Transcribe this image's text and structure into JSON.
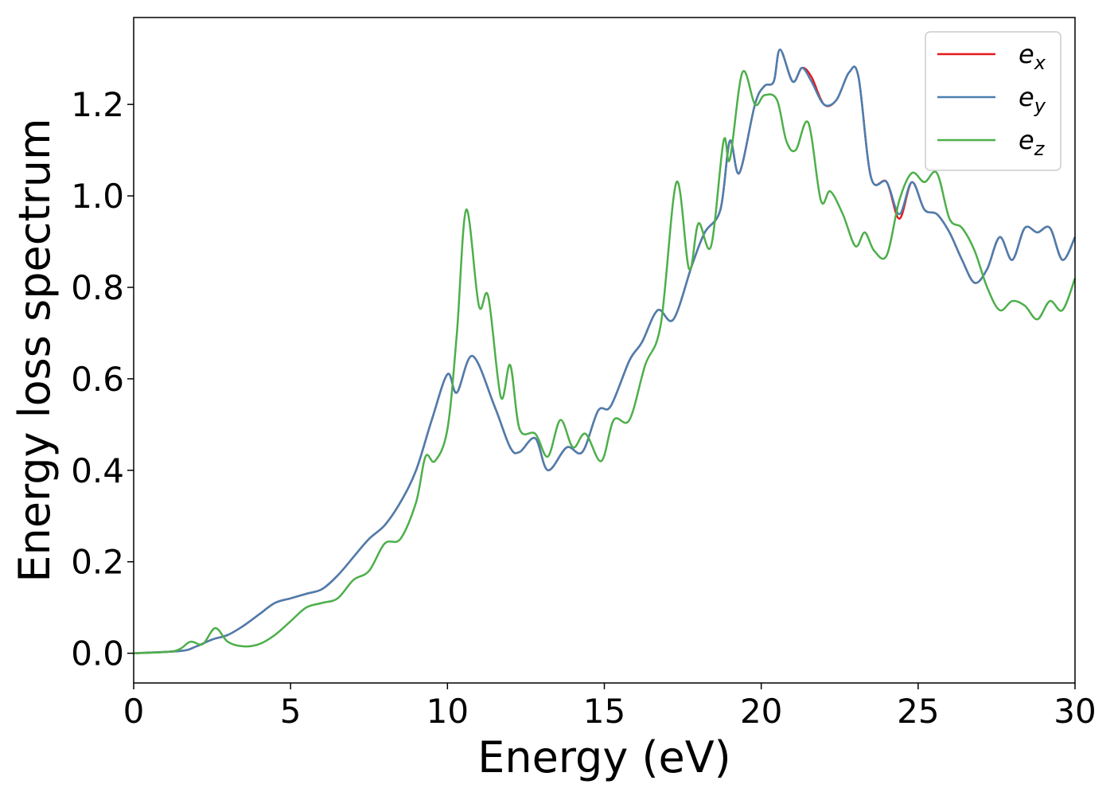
{
  "chart_data": {
    "type": "line",
    "xlabel": "Energy (eV)",
    "ylabel": "Energy loss spectrum",
    "xlim": [
      0,
      30
    ],
    "ylim": [
      -0.065,
      1.39
    ],
    "xticks": [
      0,
      5,
      10,
      15,
      20,
      25,
      30
    ],
    "xtick_labels": [
      "0",
      "5",
      "10",
      "15",
      "20",
      "25",
      "30"
    ],
    "yticks": [
      0.0,
      0.2,
      0.4,
      0.6,
      0.8,
      1.0,
      1.2
    ],
    "ytick_labels": [
      "0.0",
      "0.2",
      "0.4",
      "0.6",
      "0.8",
      "1.0",
      "1.2"
    ],
    "grid": false,
    "legend_position": "top-right",
    "series": [
      {
        "name": "e_x",
        "label_base": "e",
        "label_sub": "x",
        "color": "#e41a1c",
        "x": [
          0,
          1.5,
          2,
          2.5,
          3,
          3.5,
          4,
          4.5,
          5,
          5.5,
          6,
          6.5,
          7,
          7.5,
          8,
          8.5,
          9,
          9.5,
          10,
          10.3,
          10.8,
          11.5,
          12,
          12.3,
          12.8,
          13.2,
          13.8,
          14.3,
          14.8,
          15.2,
          15.8,
          16.2,
          16.7,
          17.2,
          17.8,
          18.2,
          18.7,
          19.0,
          19.3,
          19.8,
          20.1,
          20.4,
          20.6,
          21.0,
          21.3,
          21.6,
          22.0,
          22.4,
          22.8,
          23.1,
          23.5,
          24.0,
          24.4,
          24.8,
          25.2,
          25.6,
          26.0,
          26.4,
          26.8,
          27.2,
          27.6,
          28.0,
          28.4,
          28.8,
          29.2,
          29.6,
          30
        ],
        "y": [
          0.0,
          0.005,
          0.015,
          0.03,
          0.04,
          0.06,
          0.085,
          0.11,
          0.12,
          0.13,
          0.14,
          0.17,
          0.21,
          0.25,
          0.28,
          0.33,
          0.4,
          0.51,
          0.61,
          0.57,
          0.65,
          0.54,
          0.45,
          0.44,
          0.47,
          0.4,
          0.45,
          0.44,
          0.53,
          0.54,
          0.64,
          0.68,
          0.75,
          0.73,
          0.85,
          0.92,
          0.97,
          1.12,
          1.05,
          1.2,
          1.24,
          1.25,
          1.32,
          1.25,
          1.28,
          1.26,
          1.2,
          1.21,
          1.27,
          1.26,
          1.04,
          1.03,
          0.95,
          1.03,
          0.97,
          0.96,
          0.92,
          0.86,
          0.81,
          0.84,
          0.91,
          0.86,
          0.93,
          0.92,
          0.93,
          0.86,
          0.91
        ]
      },
      {
        "name": "e_y",
        "label_base": "e",
        "label_sub": "y",
        "color": "#4a7fb0",
        "x": [
          0,
          1.5,
          2,
          2.5,
          3,
          3.5,
          4,
          4.5,
          5,
          5.5,
          6,
          6.5,
          7,
          7.5,
          8,
          8.5,
          9,
          9.5,
          10,
          10.3,
          10.8,
          11.5,
          12,
          12.3,
          12.8,
          13.2,
          13.8,
          14.3,
          14.8,
          15.2,
          15.8,
          16.2,
          16.7,
          17.2,
          17.8,
          18.2,
          18.7,
          19.0,
          19.3,
          19.8,
          20.1,
          20.4,
          20.6,
          21.0,
          21.3,
          21.6,
          22.0,
          22.4,
          22.8,
          23.1,
          23.5,
          24.0,
          24.4,
          24.8,
          25.2,
          25.6,
          26.0,
          26.4,
          26.8,
          27.2,
          27.6,
          28.0,
          28.4,
          28.8,
          29.2,
          29.6,
          30
        ],
        "y": [
          0.0,
          0.005,
          0.015,
          0.03,
          0.04,
          0.06,
          0.085,
          0.11,
          0.12,
          0.13,
          0.14,
          0.17,
          0.21,
          0.25,
          0.28,
          0.33,
          0.4,
          0.51,
          0.61,
          0.57,
          0.65,
          0.54,
          0.45,
          0.44,
          0.47,
          0.4,
          0.45,
          0.44,
          0.53,
          0.54,
          0.64,
          0.68,
          0.75,
          0.73,
          0.85,
          0.92,
          0.97,
          1.12,
          1.05,
          1.2,
          1.24,
          1.25,
          1.32,
          1.25,
          1.28,
          1.25,
          1.2,
          1.21,
          1.27,
          1.26,
          1.04,
          1.03,
          0.96,
          1.03,
          0.97,
          0.96,
          0.92,
          0.86,
          0.81,
          0.84,
          0.91,
          0.86,
          0.93,
          0.92,
          0.93,
          0.86,
          0.91
        ]
      },
      {
        "name": "e_z",
        "label_base": "e",
        "label_sub": "z",
        "color": "#4daf4a",
        "x": [
          0,
          1.3,
          1.8,
          2.2,
          2.6,
          3.0,
          3.5,
          4.0,
          4.5,
          5.0,
          5.5,
          6.0,
          6.5,
          7.0,
          7.5,
          8.0,
          8.5,
          9.0,
          9.3,
          9.6,
          10.0,
          10.3,
          10.6,
          11.0,
          11.3,
          11.7,
          12.0,
          12.3,
          12.8,
          13.2,
          13.6,
          14.0,
          14.4,
          14.9,
          15.3,
          15.8,
          16.3,
          16.8,
          17.3,
          17.7,
          18.0,
          18.4,
          18.8,
          19.0,
          19.4,
          19.8,
          20.1,
          20.5,
          20.8,
          21.1,
          21.5,
          21.9,
          22.2,
          22.6,
          23.0,
          23.3,
          23.6,
          24.0,
          24.4,
          24.8,
          25.2,
          25.6,
          26.0,
          26.4,
          26.8,
          27.2,
          27.6,
          28.0,
          28.4,
          28.8,
          29.2,
          29.6,
          30
        ],
        "y": [
          0.0,
          0.005,
          0.025,
          0.02,
          0.055,
          0.025,
          0.015,
          0.02,
          0.04,
          0.07,
          0.1,
          0.11,
          0.12,
          0.16,
          0.18,
          0.24,
          0.25,
          0.33,
          0.43,
          0.42,
          0.49,
          0.7,
          0.97,
          0.76,
          0.78,
          0.56,
          0.63,
          0.49,
          0.48,
          0.43,
          0.51,
          0.45,
          0.48,
          0.42,
          0.51,
          0.51,
          0.63,
          0.72,
          1.03,
          0.84,
          0.94,
          0.89,
          1.12,
          1.08,
          1.27,
          1.2,
          1.22,
          1.21,
          1.12,
          1.1,
          1.16,
          0.99,
          1.01,
          0.96,
          0.89,
          0.92,
          0.88,
          0.87,
          0.99,
          1.05,
          1.03,
          1.05,
          0.95,
          0.93,
          0.88,
          0.8,
          0.75,
          0.77,
          0.76,
          0.73,
          0.77,
          0.75,
          0.82
        ]
      }
    ]
  }
}
